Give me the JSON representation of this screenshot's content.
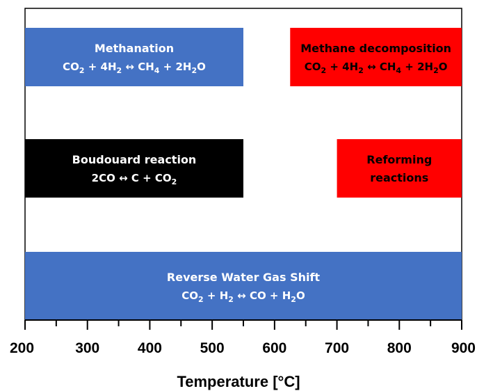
{
  "chart_data": {
    "type": "bar",
    "orientation": "horizontal-ranges",
    "xlabel": "Temperature [°C]",
    "xlim": [
      200,
      900
    ],
    "major_ticks": [
      200,
      300,
      400,
      500,
      600,
      700,
      800,
      900
    ],
    "minor_ticks": [
      250,
      350,
      450,
      550,
      650,
      750,
      850
    ],
    "grid": false,
    "ranges": [
      {
        "row": 0,
        "start": 200,
        "end": 550,
        "color": "#4472c4",
        "text_color": "#ffffff",
        "title": "Methanation",
        "equation": [
          {
            "t": "CO"
          },
          {
            "t": "2",
            "sub": true
          },
          {
            "t": " + 4H"
          },
          {
            "t": "2",
            "sub": true
          },
          {
            "t": " ↔ CH"
          },
          {
            "t": "4",
            "sub": true
          },
          {
            "t": " + 2H"
          },
          {
            "t": "2",
            "sub": true
          },
          {
            "t": "O"
          }
        ]
      },
      {
        "row": 0,
        "start": 625,
        "end": 900,
        "color": "#ff0000",
        "text_color": "#000000",
        "title": "Methane decomposition",
        "equation": [
          {
            "t": "CO"
          },
          {
            "t": "2",
            "sub": true
          },
          {
            "t": " + 4H"
          },
          {
            "t": "2",
            "sub": true
          },
          {
            "t": " ↔ CH"
          },
          {
            "t": "4",
            "sub": true
          },
          {
            "t": " + 2H"
          },
          {
            "t": "2",
            "sub": true
          },
          {
            "t": "O"
          }
        ]
      },
      {
        "row": 1,
        "start": 200,
        "end": 550,
        "color": "#000000",
        "text_color": "#ffffff",
        "title": "Boudouard reaction",
        "equation": [
          {
            "t": "2CO ↔ C + CO"
          },
          {
            "t": "2",
            "sub": true
          }
        ]
      },
      {
        "row": 1,
        "start": 700,
        "end": 900,
        "color": "#ff0000",
        "text_color": "#000000",
        "title": "Reforming",
        "title2": "reactions",
        "equation": []
      },
      {
        "row": 2,
        "start": 200,
        "end": 900,
        "color": "#4472c4",
        "text_color": "#ffffff",
        "title": "Reverse Water Gas Shift",
        "equation": [
          {
            "t": "CO"
          },
          {
            "t": "2",
            "sub": true
          },
          {
            "t": " + H"
          },
          {
            "t": "2",
            "sub": true
          },
          {
            "t": " ↔ CO + H"
          },
          {
            "t": "2",
            "sub": true
          },
          {
            "t": "O"
          }
        ]
      }
    ]
  }
}
